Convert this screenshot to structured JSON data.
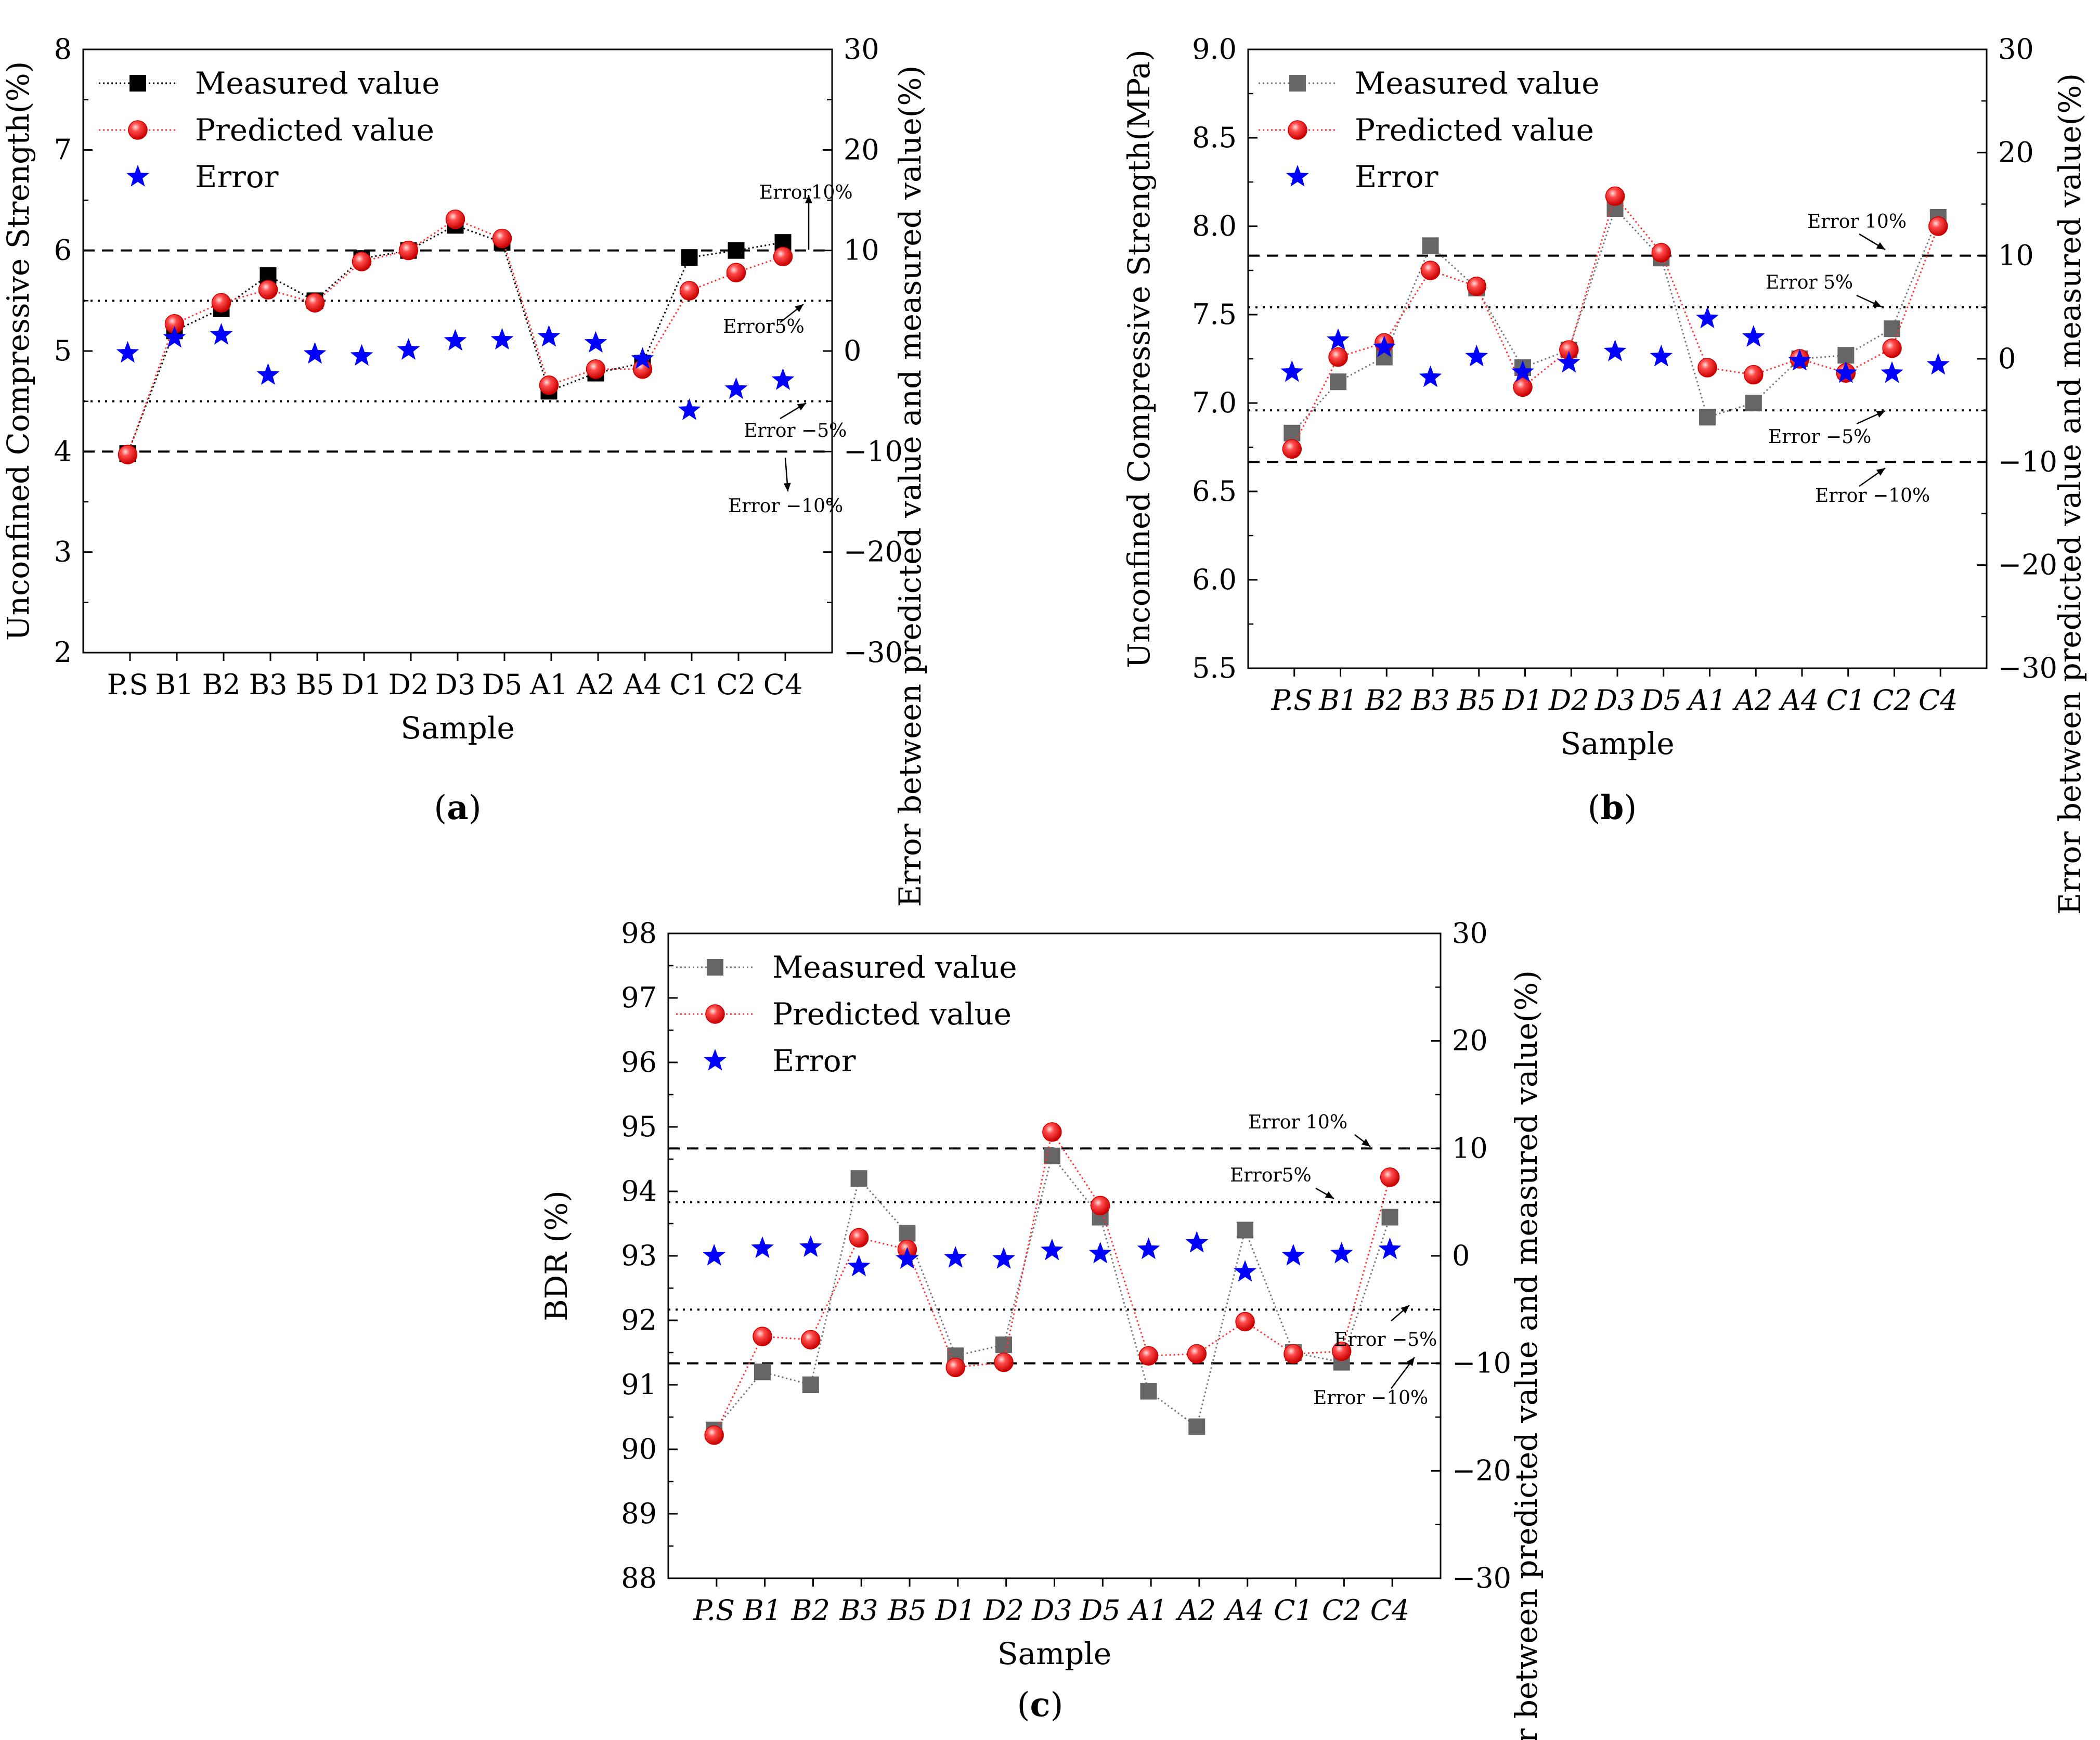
{
  "chart_data": [
    {
      "id": "a",
      "type": "line",
      "caption": "(a)",
      "xlabel": "Sample",
      "ylabel": "Unconfined Compressive Strength(%)",
      "y2label": "Error between predicted value and measured value(%)",
      "ylim": [
        2,
        8
      ],
      "yticks": [
        "2",
        "3",
        "4",
        "5",
        "6",
        "7",
        "8"
      ],
      "y2lim": [
        -30,
        30
      ],
      "y2ticks": [
        "-30",
        "-20",
        "-10",
        "0",
        "10",
        "20",
        "30"
      ],
      "categories": [
        "P.S",
        "B1",
        "B2",
        "B3",
        "B5",
        "D1",
        "D2",
        "D3",
        "D5",
        "A1",
        "A2",
        "A4",
        "C1",
        "C2",
        "C4"
      ],
      "legend": [
        "Measured value",
        "Predicted value",
        "Error"
      ],
      "series": [
        {
          "name": "Measured value",
          "axis": "left",
          "marker": "square",
          "color": "#000000",
          "values": [
            3.98,
            5.2,
            5.42,
            5.75,
            5.5,
            5.92,
            6.0,
            6.25,
            6.08,
            4.6,
            4.78,
            4.88,
            5.93,
            6.0,
            6.08
          ]
        },
        {
          "name": "Predicted value",
          "axis": "left",
          "marker": "circle",
          "color": "#ff2222",
          "values": [
            3.97,
            5.27,
            5.48,
            5.61,
            5.48,
            5.89,
            6.0,
            6.31,
            6.12,
            4.66,
            4.82,
            4.82,
            5.6,
            5.78,
            5.94
          ]
        },
        {
          "name": "Error",
          "axis": "right",
          "marker": "star",
          "color": "#0000ff",
          "values": [
            -0.2,
            1.3,
            1.6,
            -2.4,
            -0.3,
            -0.5,
            0.1,
            1.0,
            1.1,
            1.4,
            0.8,
            -0.8,
            -5.9,
            -3.8,
            -2.9
          ]
        }
      ],
      "reference_lines": [
        {
          "label": "Error10%",
          "y2": 10,
          "style": "dashed"
        },
        {
          "label": "Error5%",
          "y2": 5,
          "style": "dotted"
        },
        {
          "label": "Error −5%",
          "y2": -5,
          "style": "dotted"
        },
        {
          "label": "Error −10%",
          "y2": -10,
          "style": "dashed"
        }
      ]
    },
    {
      "id": "b",
      "type": "line",
      "caption": "(b)",
      "xlabel": "Sample",
      "ylabel": "Unconfined Compressive Strength(MPa)",
      "y2label": "Error between predicted value and measured value(%)",
      "ylim": [
        5.5,
        9.0
      ],
      "yticks": [
        "5.5",
        "6.0",
        "6.5",
        "7.0",
        "7.5",
        "8.0",
        "8.5",
        "9.0"
      ],
      "y2lim": [
        -30,
        30
      ],
      "y2ticks": [
        "-30",
        "-20",
        "-10",
        "0",
        "10",
        "20",
        "30"
      ],
      "categories": [
        "P.S",
        "B1",
        "B2",
        "B3",
        "B5",
        "D1",
        "D2",
        "D3",
        "D5",
        "A1",
        "A2",
        "A4",
        "C1",
        "C2",
        "C4"
      ],
      "legend": [
        "Measured value",
        "Predicted value",
        "Error"
      ],
      "series": [
        {
          "name": "Measured value",
          "axis": "left",
          "marker": "square",
          "color": "#666666",
          "values": [
            6.83,
            7.12,
            7.26,
            7.89,
            7.65,
            7.2,
            7.3,
            8.1,
            7.82,
            6.92,
            7.0,
            7.25,
            7.27,
            7.42,
            8.05
          ]
        },
        {
          "name": "Predicted value",
          "axis": "left",
          "marker": "circle",
          "color": "#ff2222",
          "values": [
            6.74,
            7.26,
            7.34,
            7.75,
            7.66,
            7.09,
            7.3,
            8.17,
            7.85,
            7.2,
            7.16,
            7.25,
            7.17,
            7.31,
            8.0
          ]
        },
        {
          "name": "Error",
          "axis": "right",
          "marker": "star",
          "color": "#0000ff",
          "values": [
            -1.3,
            1.8,
            1.1,
            -1.8,
            0.2,
            -1.3,
            -0.4,
            0.7,
            0.2,
            3.9,
            2.1,
            -0.2,
            -1.4,
            -1.4,
            -0.6
          ]
        }
      ],
      "reference_lines": [
        {
          "label": "Error 10%",
          "y2": 10,
          "style": "dashed"
        },
        {
          "label": "Error 5%",
          "y2": 5,
          "style": "dotted"
        },
        {
          "label": "Error −5%",
          "y2": -5,
          "style": "dotted"
        },
        {
          "label": "Error −10%",
          "y2": -10,
          "style": "dashed"
        }
      ]
    },
    {
      "id": "c",
      "type": "line",
      "caption": "(c)",
      "xlabel": "Sample",
      "ylabel": "BDR (%)",
      "y2label": "Error between predicted value and measured value(%)",
      "ylim": [
        88,
        98
      ],
      "yticks": [
        "88",
        "89",
        "90",
        "91",
        "92",
        "93",
        "94",
        "95",
        "96",
        "97",
        "98"
      ],
      "y2lim": [
        -30,
        30
      ],
      "y2ticks": [
        "-30",
        "-20",
        "-10",
        "0",
        "10",
        "20",
        "30"
      ],
      "categories": [
        "P.S",
        "B1",
        "B2",
        "B3",
        "B5",
        "D1",
        "D2",
        "D3",
        "D5",
        "A1",
        "A2",
        "A4",
        "C1",
        "C2",
        "C4"
      ],
      "legend": [
        "Measured value",
        "Predicted value",
        "Error"
      ],
      "series": [
        {
          "name": "Measured value",
          "axis": "left",
          "marker": "square",
          "color": "#666666",
          "values": [
            90.3,
            91.2,
            91.0,
            94.2,
            93.35,
            91.45,
            91.62,
            94.55,
            93.6,
            90.9,
            90.35,
            93.4,
            91.5,
            91.35,
            93.6
          ]
        },
        {
          "name": "Predicted value",
          "axis": "left",
          "marker": "circle",
          "color": "#ff2222",
          "values": [
            90.22,
            91.75,
            91.7,
            93.28,
            93.1,
            91.27,
            91.35,
            94.92,
            93.78,
            91.45,
            91.48,
            91.98,
            91.48,
            91.52,
            94.22
          ]
        },
        {
          "name": "Error",
          "axis": "right",
          "marker": "star",
          "color": "#0000ff",
          "values": [
            0.0,
            0.7,
            0.8,
            -1.0,
            -0.3,
            -0.2,
            -0.3,
            0.5,
            0.2,
            0.6,
            1.2,
            -1.5,
            0.0,
            0.2,
            0.6
          ]
        }
      ],
      "reference_lines": [
        {
          "label": "Error 10%",
          "y2": 10,
          "style": "dashed"
        },
        {
          "label": "Error5%",
          "y2": 5,
          "style": "dotted"
        },
        {
          "label": "Error −5%",
          "y2": -5,
          "style": "dotted"
        },
        {
          "label": "Error −10%",
          "y2": -10,
          "style": "dashed"
        }
      ]
    }
  ]
}
